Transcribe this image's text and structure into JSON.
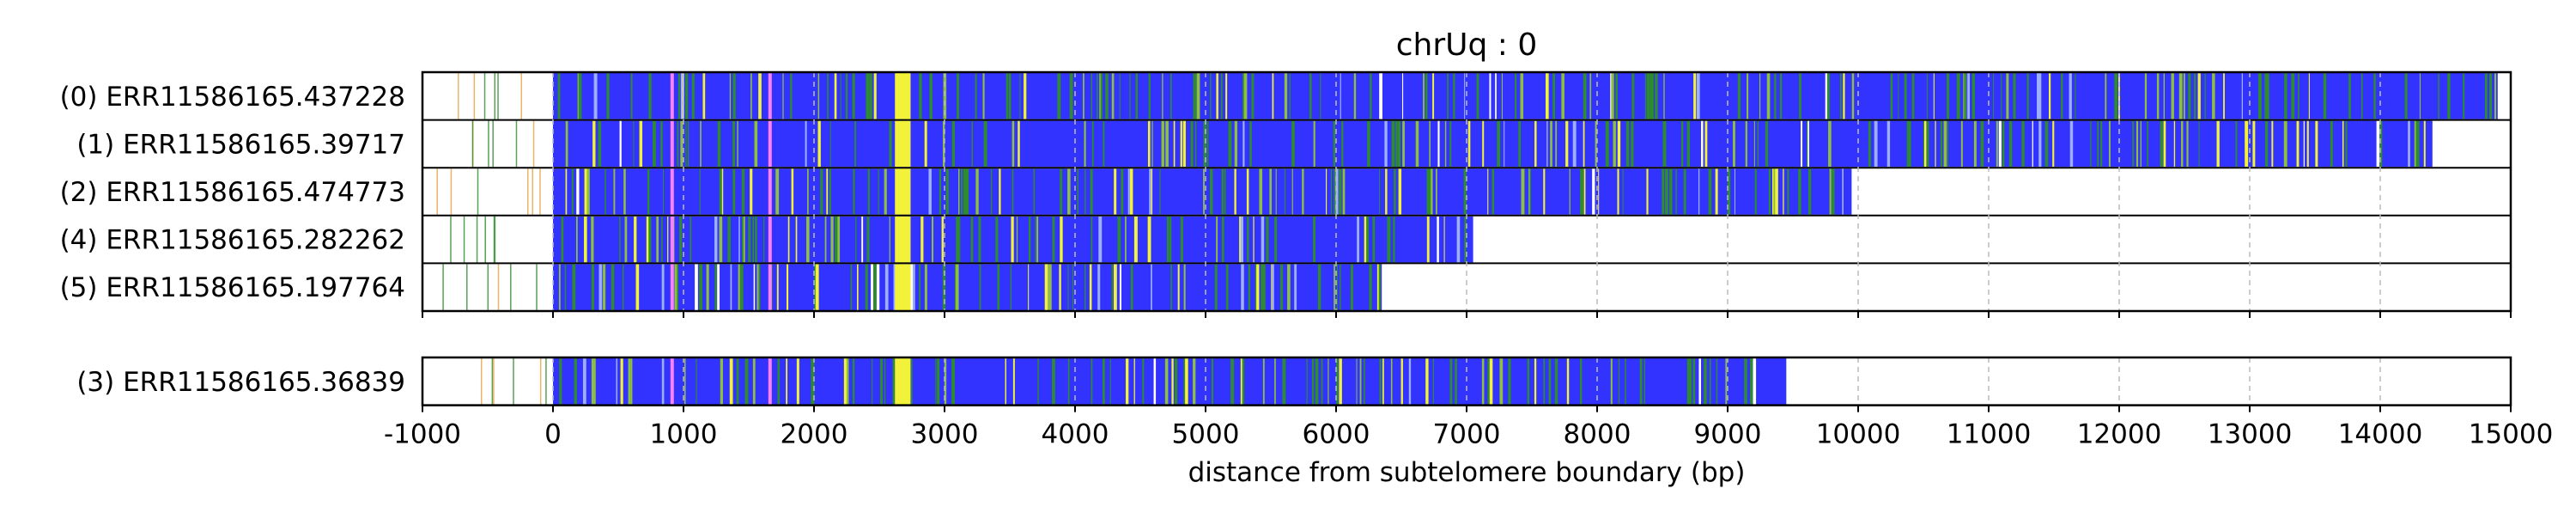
{
  "chart_data": {
    "type": "bar",
    "title": "chrUq : 0",
    "xlabel": "distance from subtelomere boundary (bp)",
    "ylabel": "",
    "xlim": [
      -1000,
      15000
    ],
    "xticks": [
      -1000,
      0,
      1000,
      2000,
      3000,
      4000,
      5000,
      6000,
      7000,
      8000,
      9000,
      10000,
      11000,
      12000,
      13000,
      14000,
      15000
    ],
    "grid": "vertical dashed",
    "colors": {
      "primary": "#3333ff",
      "green": "#2e8b2e",
      "yellow": "#f2f23a",
      "olive": "#8fbf3f",
      "pink": "#ff80ff",
      "orange": "#e8a040",
      "lightblue": "#9db0ff",
      "grid": "#bbbbbb"
    },
    "panels": [
      {
        "reads": [
          {
            "label": "(0) ERR11586165.437228",
            "start": 0,
            "end": 14900
          },
          {
            "label": "(1) ERR11586165.39717",
            "start": 0,
            "end": 14400
          },
          {
            "label": "(2) ERR11586165.474773",
            "start": 0,
            "end": 9950
          },
          {
            "label": "(4) ERR11586165.282262",
            "start": 0,
            "end": 7050
          },
          {
            "label": "(5) ERR11586165.197764",
            "start": 0,
            "end": 6350
          }
        ]
      },
      {
        "reads": [
          {
            "label": "(3) ERR11586165.36839",
            "start": 0,
            "end": 9450
          }
        ]
      }
    ]
  }
}
